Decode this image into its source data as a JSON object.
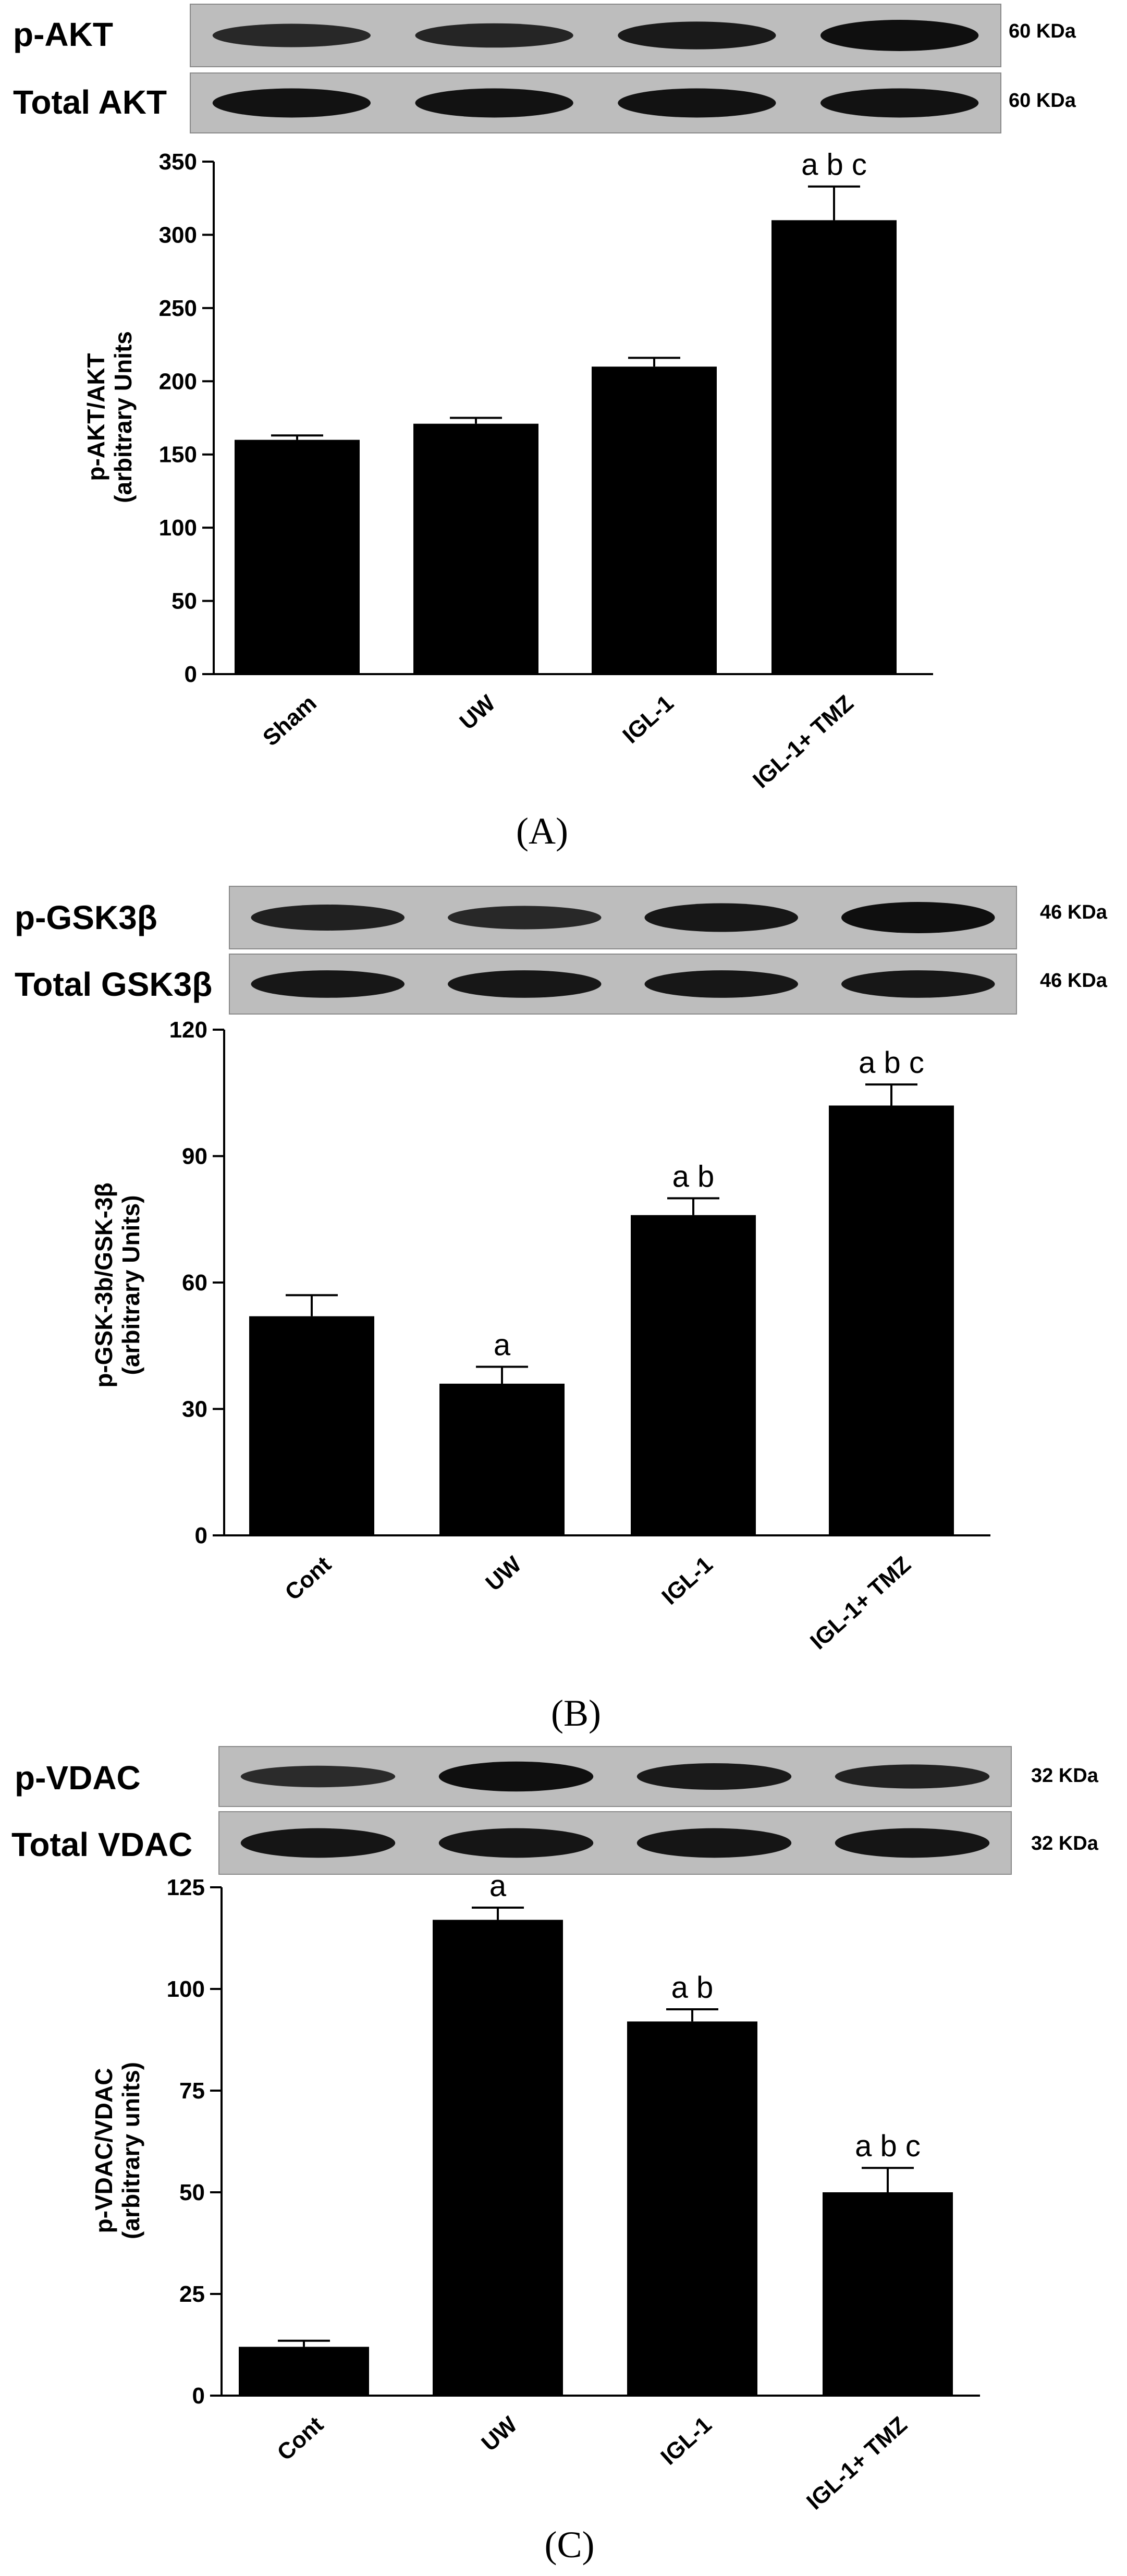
{
  "chart_data": [
    {
      "type": "bar",
      "panel": "(A)",
      "blots": [
        {
          "label": "p-AKT",
          "kda": "60 KDa",
          "intensities": [
            0.55,
            0.6,
            0.8,
            1.0
          ]
        },
        {
          "label": "Total AKT",
          "kda": "60 KDa",
          "intensities": [
            0.95,
            0.95,
            0.95,
            0.95
          ]
        }
      ],
      "categories": [
        "Sham",
        "UW",
        "IGL-1",
        "IGL-1+ TMZ"
      ],
      "values": [
        160,
        171,
        210,
        310
      ],
      "errors": [
        3,
        4,
        6,
        23
      ],
      "significance": [
        "",
        "",
        "",
        "a b c"
      ],
      "ylabel": [
        "p-AKT/AKT",
        "(arbitrary Units"
      ],
      "ylim": [
        0,
        350
      ],
      "yticks": [
        0,
        50,
        100,
        150,
        200,
        250,
        300,
        350
      ]
    },
    {
      "type": "bar",
      "panel": "(B)",
      "blots": [
        {
          "label": "p-GSK3β",
          "kda": "46 KDa",
          "intensities": [
            0.7,
            0.55,
            0.85,
            1.0
          ]
        },
        {
          "label": "Total GSK3β",
          "kda": "46 KDa",
          "intensities": [
            0.85,
            0.85,
            0.85,
            0.85
          ]
        }
      ],
      "categories": [
        "Cont",
        "UW",
        "IGL-1",
        "IGL-1+ TMZ"
      ],
      "values": [
        52,
        36,
        76,
        102
      ],
      "errors": [
        5,
        4,
        4,
        5
      ],
      "significance": [
        "",
        "a",
        "a b",
        "a b c"
      ],
      "ylabel": [
        "p-GSK-3b/GSK-3β",
        "(arbitrary Units)"
      ],
      "ylim": [
        0,
        120
      ],
      "yticks": [
        0,
        30,
        60,
        90,
        120
      ]
    },
    {
      "type": "bar",
      "panel": "(C)",
      "blots": [
        {
          "label": "p-VDAC",
          "kda": "32 KDa",
          "intensities": [
            0.5,
            1.0,
            0.8,
            0.65
          ]
        },
        {
          "label": "Total VDAC",
          "kda": "32 KDa",
          "intensities": [
            0.9,
            0.9,
            0.9,
            0.9
          ]
        }
      ],
      "categories": [
        "Cont",
        "UW",
        "IGL-1",
        "IGL-1+ TMZ"
      ],
      "values": [
        12,
        117,
        92,
        50
      ],
      "errors": [
        1.5,
        3,
        3,
        6
      ],
      "significance": [
        "",
        "a",
        "a b",
        "a b c"
      ],
      "ylabel": [
        "p-VDAC/VDAC",
        "(arbitrary units)"
      ],
      "ylim": [
        0,
        125
      ],
      "yticks": [
        0,
        25,
        50,
        75,
        100,
        125
      ]
    }
  ]
}
